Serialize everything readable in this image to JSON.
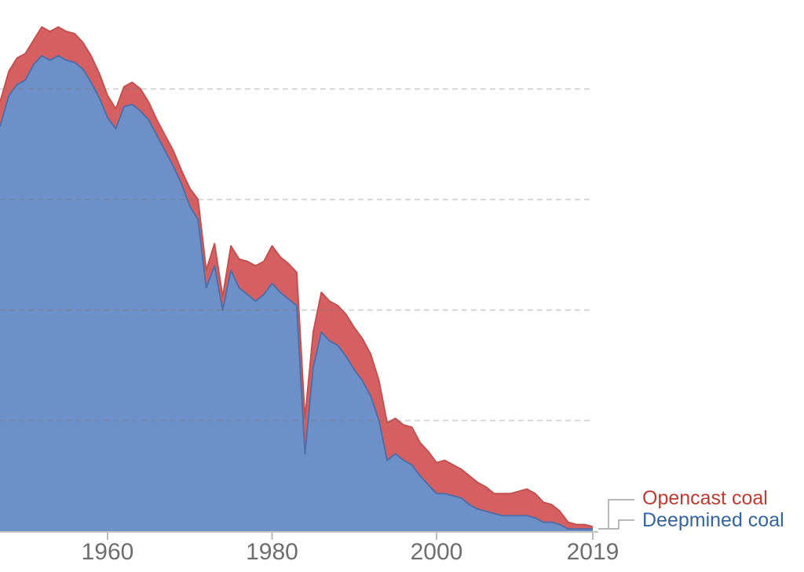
{
  "chart_data": {
    "type": "area",
    "stacked": true,
    "title": "",
    "xlabel": "",
    "ylabel": "",
    "x": [
      1947,
      1948,
      1949,
      1950,
      1951,
      1952,
      1953,
      1954,
      1955,
      1956,
      1957,
      1958,
      1959,
      1960,
      1961,
      1962,
      1963,
      1964,
      1965,
      1966,
      1967,
      1968,
      1969,
      1970,
      1971,
      1972,
      1973,
      1974,
      1975,
      1976,
      1977,
      1978,
      1979,
      1980,
      1981,
      1982,
      1983,
      1984,
      1985,
      1986,
      1987,
      1988,
      1989,
      1990,
      1991,
      1992,
      1993,
      1994,
      1995,
      1996,
      1997,
      1998,
      1999,
      2000,
      2001,
      2002,
      2003,
      2004,
      2005,
      2006,
      2007,
      2008,
      2009,
      2010,
      2011,
      2012,
      2013,
      2014,
      2015,
      2016,
      2017,
      2018,
      2019
    ],
    "series": [
      {
        "name": "Deepmined coal",
        "fill": "#6e90c8",
        "stroke": "#4e6fa7",
        "label_color": "#34659f",
        "values": [
          183,
          197,
          202,
          204,
          211,
          215,
          213,
          215,
          213,
          212,
          209,
          203,
          196,
          187,
          182,
          192,
          193,
          190,
          186,
          179,
          172,
          165,
          157,
          147,
          141,
          110,
          120,
          100,
          118,
          110,
          107,
          104,
          107,
          112,
          108,
          105,
          102,
          35,
          74,
          90,
          86,
          84,
          79,
          73,
          68,
          61,
          50,
          32,
          35,
          32,
          30,
          25,
          21,
          17,
          17,
          16,
          15,
          12,
          10,
          9,
          8,
          7,
          7,
          7,
          7,
          6,
          4,
          4,
          3,
          1,
          1,
          1,
          1
        ]
      },
      {
        "name": "Opencast coal",
        "fill": "#d65f62",
        "stroke": "#c5514f",
        "label_color": "#c03a31",
        "values": [
          11,
          11,
          12,
          12,
          11,
          13,
          13,
          13,
          13,
          13,
          12,
          12,
          11,
          10,
          9,
          9,
          10,
          10,
          8,
          7,
          7,
          7,
          6,
          8,
          9,
          8,
          10,
          6,
          11,
          13,
          15,
          16,
          15,
          17,
          16,
          16,
          15,
          16,
          16,
          18,
          18,
          18,
          19,
          19,
          19,
          19,
          18,
          17,
          16,
          16,
          17,
          15,
          15,
          14,
          15,
          14,
          13,
          13,
          12,
          11,
          9,
          10,
          10,
          11,
          12,
          11,
          9,
          8,
          6,
          3,
          2,
          2,
          1
        ]
      }
    ],
    "x_ticks": [
      1960,
      1980,
      2000,
      2019
    ],
    "y_gridline_values": [
      50,
      100,
      150,
      200
    ],
    "xlim": [
      1947,
      2019
    ],
    "ylim": [
      0,
      235
    ],
    "grid": "dashed-horizontal",
    "legend_position": "right-of-plot"
  },
  "styles": {
    "background": "#ffffff",
    "axis_label_color": "#6e6e6e",
    "gridline_color": "#7a7a7a",
    "gridline_opacity": 0.3,
    "baseline_color": "#c4c4c4",
    "tick_color": "#b9b9b9",
    "leader_color": "#b9b9b9"
  }
}
